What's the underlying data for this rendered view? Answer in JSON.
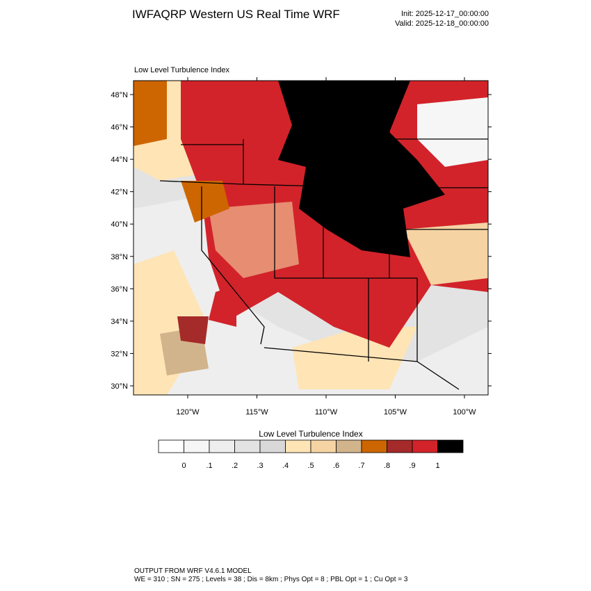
{
  "header": {
    "title": "IWFAQRP Western US Real Time WRF",
    "init": "Init: 2025-12-17_00:00:00",
    "valid": "Valid: 2025-12-18_00:00:00"
  },
  "map": {
    "title": "Low Level Turbulence Index",
    "xlim": [
      -123.92,
      -98.29
    ],
    "ylim": [
      29.44,
      48.86
    ],
    "xticks": [
      {
        "value": -120,
        "label": "120°W"
      },
      {
        "value": -115,
        "label": "115°W"
      },
      {
        "value": -110,
        "label": "110°W"
      },
      {
        "value": -105,
        "label": "105°W"
      },
      {
        "value": -100,
        "label": "100°W"
      }
    ],
    "yticks": [
      {
        "value": 30,
        "label": "30°N"
      },
      {
        "value": 32,
        "label": "32°N"
      },
      {
        "value": 34,
        "label": "34°N"
      },
      {
        "value": 36,
        "label": "36°N"
      },
      {
        "value": 38,
        "label": "38°N"
      },
      {
        "value": 40,
        "label": "40°N"
      },
      {
        "value": 42,
        "label": "42°N"
      },
      {
        "value": 44,
        "label": "44°N"
      },
      {
        "value": 46,
        "label": "46°N"
      },
      {
        "value": 48,
        "label": "48°N"
      }
    ]
  },
  "colorbar": {
    "title": "Low Level Turbulence Index",
    "colors": [
      "#ffffff",
      "#f6f6f6",
      "#eeeeee",
      "#e3e3e3",
      "#d8d8d8",
      "#ffe4b5",
      "#f5d3a3",
      "#d2b48c",
      "#cd6600",
      "#a52a2a",
      "#d2232a",
      "#000000"
    ],
    "labels": [
      "0",
      ".1",
      ".2",
      ".3",
      ".4",
      ".5",
      ".6",
      ".7",
      ".8",
      ".9",
      "1"
    ]
  },
  "footer": {
    "line1": "OUTPUT FROM WRF V4.6.1 MODEL",
    "line2": "WE = 310 ; SN = 275 ; Levels = 38 ; Dis = 8km ; Phys Opt = 8 ; PBL Opt = 1 ; Cu Opt = 3"
  }
}
